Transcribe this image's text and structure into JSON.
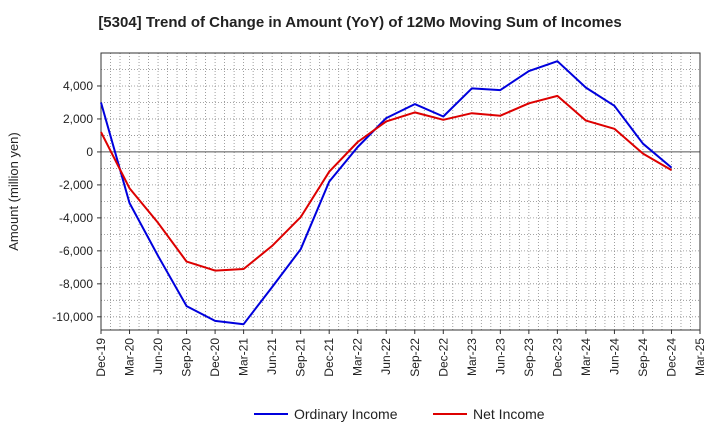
{
  "chart_data": {
    "type": "line",
    "title": "[5304]  Trend of Change in Amount (YoY) of 12Mo Moving Sum of Incomes",
    "xlabel": "",
    "ylabel": "Amount (million yen)",
    "categories": [
      "Dec-19",
      "Mar-20",
      "Jun-20",
      "Sep-20",
      "Dec-20",
      "Mar-21",
      "Jun-21",
      "Sep-21",
      "Dec-21",
      "Mar-22",
      "Jun-22",
      "Sep-22",
      "Dec-22",
      "Mar-23",
      "Jun-23",
      "Sep-23",
      "Dec-23",
      "Mar-24",
      "Jun-24",
      "Sep-24",
      "Dec-24",
      "Mar-25"
    ],
    "ylim": [
      -10800,
      6000
    ],
    "yticks": [
      4000,
      2000,
      0,
      -2000,
      -4000,
      -6000,
      -8000,
      -10000
    ],
    "ytick_labels": [
      "4,000",
      "2,000",
      "0",
      "-2,000",
      "-4,000",
      "-6,000",
      "-8,000",
      "-10,000"
    ],
    "grid": true,
    "legend_position": "bottom",
    "series": [
      {
        "name": "Ordinary Income",
        "color": "#0000dd",
        "values": [
          3000,
          -3100,
          -6300,
          -9350,
          -10250,
          -10450,
          -8200,
          -5900,
          -1800,
          300,
          2050,
          2900,
          2150,
          3850,
          3750,
          4900,
          5500,
          3900,
          2800,
          500,
          -950,
          null
        ]
      },
      {
        "name": "Net Income",
        "color": "#dd0000",
        "values": [
          1200,
          -2200,
          -4300,
          -6650,
          -7200,
          -7100,
          -5700,
          -3950,
          -1200,
          600,
          1850,
          2400,
          1950,
          2350,
          2200,
          2950,
          3400,
          1900,
          1400,
          -100,
          -1100,
          null
        ]
      }
    ]
  }
}
